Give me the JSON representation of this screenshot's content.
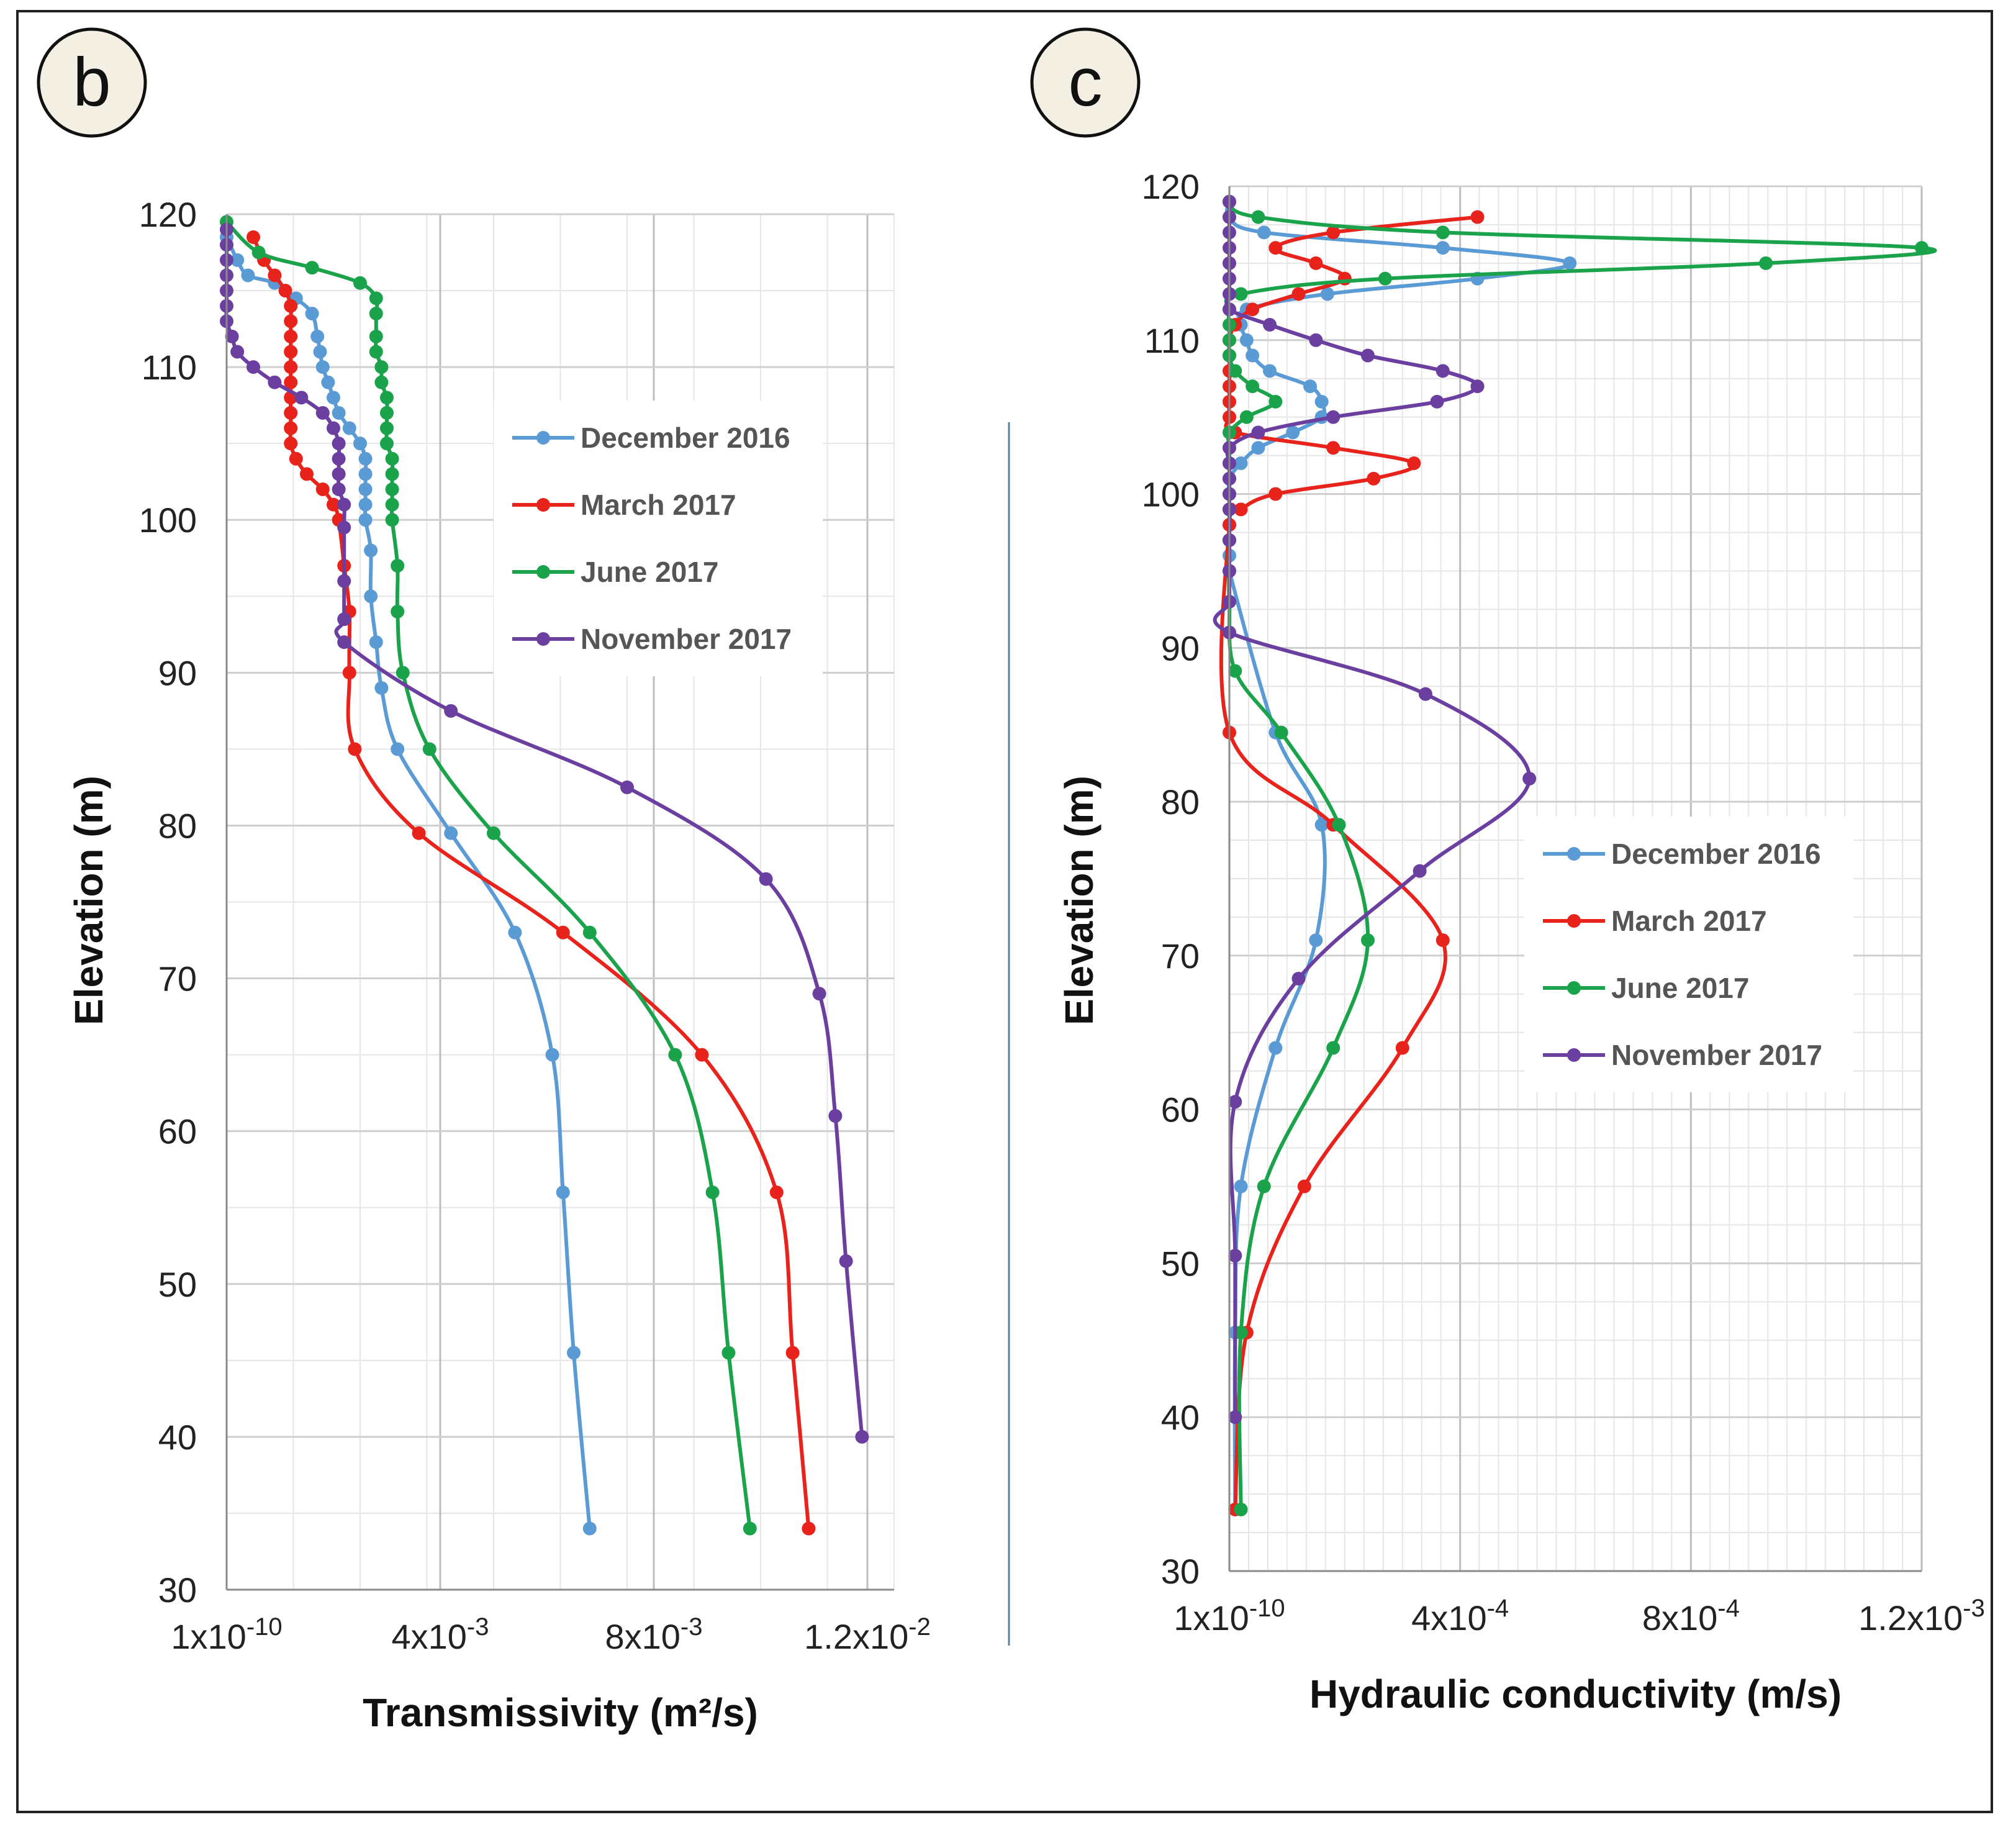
{
  "chart_data": [
    {
      "type": "line",
      "panel_label": "b",
      "xlabel": "Transmissivity (m²/s)",
      "ylabel": "Elevation (m)",
      "xlim": [
        0,
        0.0125
      ],
      "ylim": [
        30,
        120
      ],
      "x_tick_values": [
        0,
        0.004,
        0.008,
        0.012
      ],
      "x_tick_labels": [
        {
          "base": "1x10",
          "exp": "-10"
        },
        {
          "base": "4x10",
          "exp": "-3"
        },
        {
          "base": "8x10",
          "exp": "-3"
        },
        {
          "base": "1.2x10",
          "exp": "-2"
        }
      ],
      "y_ticks": [
        120,
        110,
        100,
        90,
        80,
        70,
        60,
        50,
        40,
        30
      ],
      "grid": true,
      "legend_position": "upper-right",
      "series": [
        {
          "name": "December 2016",
          "color": "#5b9bd5",
          "points": [
            [
              0.0,
              118.5
            ],
            [
              0.0002,
              117.0
            ],
            [
              0.0004,
              116.0
            ],
            [
              0.0009,
              115.5
            ],
            [
              0.0013,
              114.5
            ],
            [
              0.0016,
              113.5
            ],
            [
              0.0017,
              112.0
            ],
            [
              0.00175,
              111.0
            ],
            [
              0.0018,
              110.0
            ],
            [
              0.0019,
              109.0
            ],
            [
              0.002,
              108.0
            ],
            [
              0.0021,
              107.0
            ],
            [
              0.0023,
              106.0
            ],
            [
              0.0025,
              105.0
            ],
            [
              0.0026,
              104.0
            ],
            [
              0.0026,
              103.0
            ],
            [
              0.0026,
              102.0
            ],
            [
              0.0026,
              101.0
            ],
            [
              0.0026,
              100.0
            ],
            [
              0.0027,
              98.0
            ],
            [
              0.0027,
              95.0
            ],
            [
              0.0028,
              92.0
            ],
            [
              0.0029,
              89.0
            ],
            [
              0.0032,
              85.0
            ],
            [
              0.0042,
              79.5
            ],
            [
              0.0054,
              73.0
            ],
            [
              0.0061,
              65.0
            ],
            [
              0.0063,
              56.0
            ],
            [
              0.0065,
              45.5
            ],
            [
              0.0068,
              34.0
            ]
          ]
        },
        {
          "name": "March 2017",
          "color": "#e8231c",
          "points": [
            [
              0.0005,
              118.5
            ],
            [
              0.0007,
              117.0
            ],
            [
              0.0009,
              116.0
            ],
            [
              0.0011,
              115.0
            ],
            [
              0.0012,
              114.0
            ],
            [
              0.0012,
              113.0
            ],
            [
              0.0012,
              112.0
            ],
            [
              0.0012,
              111.0
            ],
            [
              0.0012,
              110.0
            ],
            [
              0.0012,
              109.0
            ],
            [
              0.0012,
              108.0
            ],
            [
              0.0012,
              107.0
            ],
            [
              0.0012,
              106.0
            ],
            [
              0.0012,
              105.0
            ],
            [
              0.0013,
              104.0
            ],
            [
              0.0015,
              103.0
            ],
            [
              0.0018,
              102.0
            ],
            [
              0.002,
              101.0
            ],
            [
              0.0021,
              100.0
            ],
            [
              0.0022,
              97.0
            ],
            [
              0.0023,
              94.0
            ],
            [
              0.0023,
              90.0
            ],
            [
              0.0024,
              85.0
            ],
            [
              0.0036,
              79.5
            ],
            [
              0.0063,
              73.0
            ],
            [
              0.0089,
              65.0
            ],
            [
              0.0103,
              56.0
            ],
            [
              0.0106,
              45.5
            ],
            [
              0.0109,
              34.0
            ]
          ]
        },
        {
          "name": "June 2017",
          "color": "#1aa34a",
          "points": [
            [
              0.0,
              119.5
            ],
            [
              0.0006,
              117.5
            ],
            [
              0.0016,
              116.5
            ],
            [
              0.0025,
              115.5
            ],
            [
              0.0028,
              114.5
            ],
            [
              0.0028,
              113.5
            ],
            [
              0.0028,
              112.0
            ],
            [
              0.0028,
              111.0
            ],
            [
              0.0029,
              110.0
            ],
            [
              0.0029,
              109.0
            ],
            [
              0.003,
              108.0
            ],
            [
              0.003,
              107.0
            ],
            [
              0.003,
              106.0
            ],
            [
              0.003,
              105.0
            ],
            [
              0.0031,
              104.0
            ],
            [
              0.0031,
              103.0
            ],
            [
              0.0031,
              102.0
            ],
            [
              0.0031,
              101.0
            ],
            [
              0.0031,
              100.0
            ],
            [
              0.0032,
              97.0
            ],
            [
              0.0032,
              94.0
            ],
            [
              0.0033,
              90.0
            ],
            [
              0.0038,
              85.0
            ],
            [
              0.005,
              79.5
            ],
            [
              0.0068,
              73.0
            ],
            [
              0.0084,
              65.0
            ],
            [
              0.0091,
              56.0
            ],
            [
              0.0094,
              45.5
            ],
            [
              0.0098,
              34.0
            ]
          ]
        },
        {
          "name": "November 2017",
          "color": "#6b3fa0",
          "points": [
            [
              0.0,
              119.0
            ],
            [
              0.0,
              118.0
            ],
            [
              0.0,
              117.0
            ],
            [
              0.0,
              116.0
            ],
            [
              0.0,
              115.0
            ],
            [
              0.0,
              114.0
            ],
            [
              0.0,
              113.0
            ],
            [
              0.0001,
              112.0
            ],
            [
              0.0002,
              111.0
            ],
            [
              0.0005,
              110.0
            ],
            [
              0.0009,
              109.0
            ],
            [
              0.0014,
              108.0
            ],
            [
              0.0018,
              107.0
            ],
            [
              0.002,
              106.0
            ],
            [
              0.0021,
              105.0
            ],
            [
              0.0021,
              104.0
            ],
            [
              0.0021,
              103.0
            ],
            [
              0.0021,
              102.0
            ],
            [
              0.0022,
              101.0
            ],
            [
              0.0022,
              99.5
            ],
            [
              0.0022,
              96.0
            ],
            [
              0.0022,
              93.5
            ],
            [
              0.0022,
              92.0
            ],
            [
              0.0042,
              87.5
            ],
            [
              0.0075,
              82.5
            ],
            [
              0.0101,
              76.5
            ],
            [
              0.0111,
              69.0
            ],
            [
              0.0114,
              61.0
            ],
            [
              0.0116,
              51.5
            ],
            [
              0.0119,
              40.0
            ]
          ]
        }
      ]
    },
    {
      "type": "line",
      "panel_label": "c",
      "xlabel": "Hydraulic conductivity (m/s)",
      "ylabel": "Elevation (m)",
      "xlim": [
        0,
        0.0012
      ],
      "ylim": [
        30,
        120
      ],
      "x_tick_values": [
        0,
        0.0004,
        0.0008,
        0.0012
      ],
      "x_tick_labels": [
        {
          "base": "1x10",
          "exp": "-10"
        },
        {
          "base": "4x10",
          "exp": "-4"
        },
        {
          "base": "8x10",
          "exp": "-4"
        },
        {
          "base": "1.2x10",
          "exp": "-3"
        }
      ],
      "y_ticks": [
        120,
        110,
        100,
        90,
        80,
        70,
        60,
        50,
        40,
        30
      ],
      "grid": true,
      "legend_position": "right-middle",
      "series": [
        {
          "name": "December 2016",
          "color": "#5b9bd5",
          "points": [
            [
              0.0,
              119.0
            ],
            [
              0.0,
              118.0
            ],
            [
              6e-05,
              117.0
            ],
            [
              0.00037,
              116.0
            ],
            [
              0.00059,
              115.0
            ],
            [
              0.00043,
              114.0
            ],
            [
              0.00017,
              113.0
            ],
            [
              3e-05,
              112.0
            ],
            [
              2e-05,
              111.0
            ],
            [
              3e-05,
              110.0
            ],
            [
              4e-05,
              109.0
            ],
            [
              7e-05,
              108.0
            ],
            [
              0.00014,
              107.0
            ],
            [
              0.00016,
              106.0
            ],
            [
              0.00016,
              105.0
            ],
            [
              0.00011,
              104.0
            ],
            [
              5e-05,
              103.0
            ],
            [
              2e-05,
              102.0
            ],
            [
              0.0,
              101.0
            ],
            [
              0.0,
              100.0
            ],
            [
              0.0,
              99.0
            ],
            [
              0.0,
              98.0
            ],
            [
              0.0,
              97.0
            ],
            [
              0.0,
              96.0
            ],
            [
              0.0,
              95.0
            ],
            [
              8e-05,
              84.5
            ],
            [
              0.00016,
              78.5
            ],
            [
              0.00015,
              71.0
            ],
            [
              8e-05,
              64.0
            ],
            [
              2e-05,
              55.0
            ],
            [
              1e-05,
              45.5
            ],
            [
              1e-05,
              34.0
            ]
          ]
        },
        {
          "name": "March 2017",
          "color": "#e8231c",
          "points": [
            [
              0.00043,
              118.0
            ],
            [
              0.00018,
              117.0
            ],
            [
              8e-05,
              116.0
            ],
            [
              0.00015,
              115.0
            ],
            [
              0.0002,
              114.0
            ],
            [
              0.00012,
              113.0
            ],
            [
              4e-05,
              112.0
            ],
            [
              1e-05,
              111.0
            ],
            [
              0.0,
              110.0
            ],
            [
              0.0,
              109.0
            ],
            [
              0.0,
              108.0
            ],
            [
              0.0,
              107.0
            ],
            [
              0.0,
              106.0
            ],
            [
              0.0,
              105.0
            ],
            [
              1e-05,
              104.0
            ],
            [
              0.00018,
              103.0
            ],
            [
              0.00032,
              102.0
            ],
            [
              0.00025,
              101.0
            ],
            [
              8e-05,
              100.0
            ],
            [
              2e-05,
              99.0
            ],
            [
              0.0,
              98.0
            ],
            [
              0.0,
              84.5
            ],
            [
              0.00018,
              78.5
            ],
            [
              0.00037,
              71.0
            ],
            [
              0.0003,
              64.0
            ],
            [
              0.00013,
              55.0
            ],
            [
              3e-05,
              45.5
            ],
            [
              1e-05,
              34.0
            ]
          ]
        },
        {
          "name": "June 2017",
          "color": "#1aa34a",
          "points": [
            [
              0.0,
              119.0
            ],
            [
              5e-05,
              118.0
            ],
            [
              0.00037,
              117.0
            ],
            [
              0.0012,
              116.0
            ],
            [
              0.00093,
              115.0
            ],
            [
              0.00027,
              114.0
            ],
            [
              2e-05,
              113.0
            ],
            [
              0.0,
              112.0
            ],
            [
              0.0,
              111.0
            ],
            [
              0.0,
              110.0
            ],
            [
              0.0,
              109.0
            ],
            [
              1e-05,
              108.0
            ],
            [
              4e-05,
              107.0
            ],
            [
              8e-05,
              106.0
            ],
            [
              3e-05,
              105.0
            ],
            [
              0.0,
              104.0
            ],
            [
              0.0,
              103.0
            ],
            [
              0.0,
              102.0
            ],
            [
              0.0,
              101.0
            ],
            [
              0.0,
              100.0
            ],
            [
              0.0,
              99.0
            ],
            [
              0.0,
              97.0
            ],
            [
              0.0,
              93.0
            ],
            [
              1e-05,
              88.5
            ],
            [
              9e-05,
              84.5
            ],
            [
              0.00019,
              78.5
            ],
            [
              0.00024,
              71.0
            ],
            [
              0.00018,
              64.0
            ],
            [
              6e-05,
              55.0
            ],
            [
              2e-05,
              45.5
            ],
            [
              2e-05,
              34.0
            ]
          ]
        },
        {
          "name": "November 2017",
          "color": "#6b3fa0",
          "points": [
            [
              0.0,
              119.0
            ],
            [
              0.0,
              118.0
            ],
            [
              0.0,
              117.0
            ],
            [
              0.0,
              116.0
            ],
            [
              0.0,
              115.0
            ],
            [
              0.0,
              114.0
            ],
            [
              0.0,
              113.0
            ],
            [
              0.0,
              112.0
            ],
            [
              7e-05,
              111.0
            ],
            [
              0.00015,
              110.0
            ],
            [
              0.00024,
              109.0
            ],
            [
              0.00037,
              108.0
            ],
            [
              0.00043,
              107.0
            ],
            [
              0.00036,
              106.0
            ],
            [
              0.00018,
              105.0
            ],
            [
              5e-05,
              104.0
            ],
            [
              0.0,
              103.0
            ],
            [
              0.0,
              102.0
            ],
            [
              0.0,
              101.0
            ],
            [
              0.0,
              100.0
            ],
            [
              0.0,
              99.0
            ],
            [
              0.0,
              97.0
            ],
            [
              0.0,
              95.0
            ],
            [
              0.0,
              93.0
            ],
            [
              0.0,
              91.0
            ],
            [
              0.00034,
              87.0
            ],
            [
              0.00052,
              81.5
            ],
            [
              0.00033,
              75.5
            ],
            [
              0.00012,
              68.5
            ],
            [
              1e-05,
              60.5
            ],
            [
              1e-05,
              50.5
            ],
            [
              1e-05,
              40.0
            ]
          ]
        }
      ]
    }
  ]
}
